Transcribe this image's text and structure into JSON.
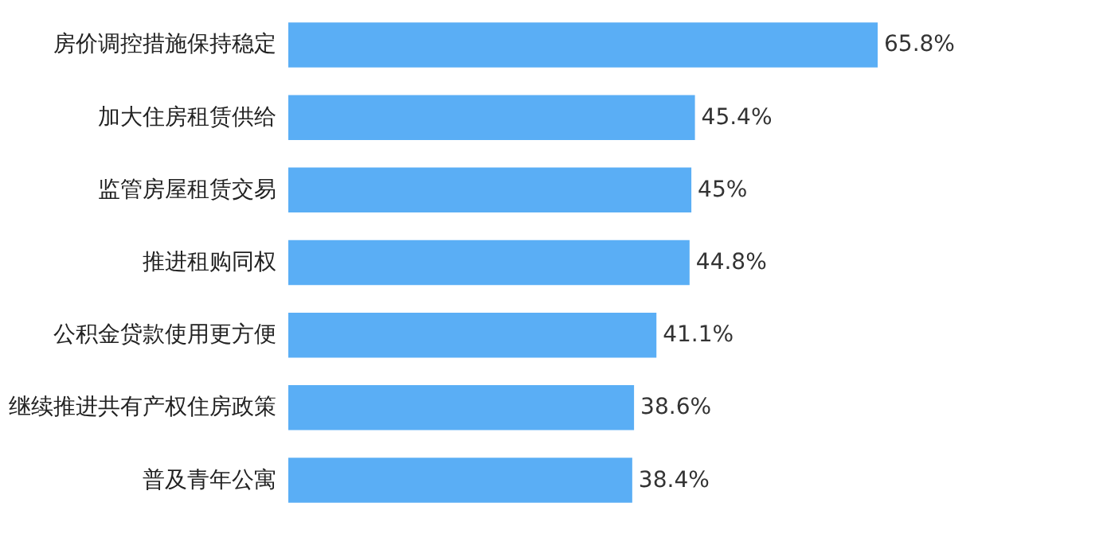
{
  "chart_data": {
    "type": "bar",
    "orientation": "horizontal",
    "categories": [
      "房价调控措施保持稳定",
      "加大住房租赁供给",
      "监管房屋租赁交易",
      "推进租购同权",
      "公积金贷款使用更方便",
      "继续推进共有产权住房政策",
      "普及青年公寓"
    ],
    "values": [
      65.8,
      45.4,
      45,
      44.8,
      41.1,
      38.6,
      38.4
    ],
    "value_labels": [
      "65.8%",
      "45.4%",
      "45%",
      "44.8%",
      "41.1%",
      "38.6%",
      "38.4%"
    ],
    "color": "#5aaef5",
    "tick_labels": "y",
    "grid": false
  }
}
